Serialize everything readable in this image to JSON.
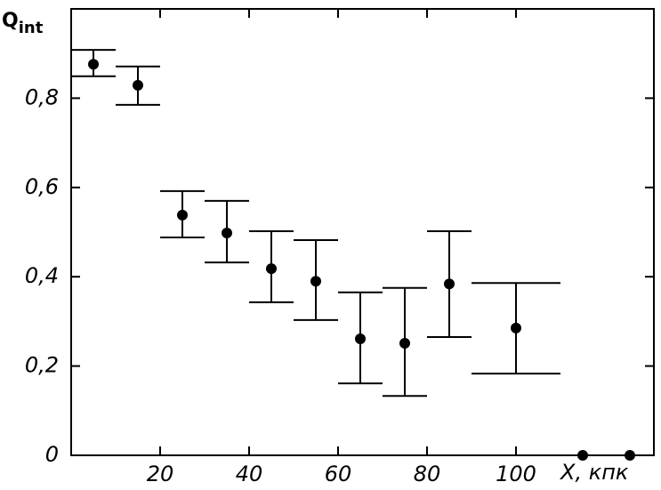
{
  "chart_data": {
    "type": "scatter",
    "ylabel": "Q",
    "ylabel_subscript": "int",
    "xlabel": "X, кпк",
    "xlim": [
      0,
      131
    ],
    "ylim": [
      0,
      1.0
    ],
    "xticks": [
      20,
      40,
      60,
      80,
      100
    ],
    "yticks": [
      0,
      {
        "value": 0.2,
        "label": "0,2"
      },
      {
        "value": 0.4,
        "label": "0,4"
      },
      {
        "value": 0.6,
        "label": "0,6"
      },
      {
        "value": 0.8,
        "label": "0,8"
      }
    ],
    "series": [
      {
        "color": "#000000",
        "x": [
          5,
          15,
          25,
          35,
          45,
          55,
          65,
          75,
          85,
          100
        ],
        "xerr": [
          5,
          5,
          5,
          5,
          5,
          5,
          5,
          5,
          5,
          10
        ],
        "values": [
          0.876,
          0.829,
          0.538,
          0.498,
          0.418,
          0.39,
          0.261,
          0.251,
          0.384,
          0.285
        ],
        "y_low": [
          0.849,
          0.785,
          0.488,
          0.432,
          0.343,
          0.303,
          0.161,
          0.133,
          0.265,
          0.183
        ],
        "y_high": [
          0.908,
          0.871,
          0.592,
          0.57,
          0.502,
          0.482,
          0.365,
          0.375,
          0.502,
          0.386
        ]
      },
      {
        "color": "#000000",
        "x": [
          115,
          125.6
        ],
        "values": [
          0,
          0
        ]
      }
    ]
  }
}
